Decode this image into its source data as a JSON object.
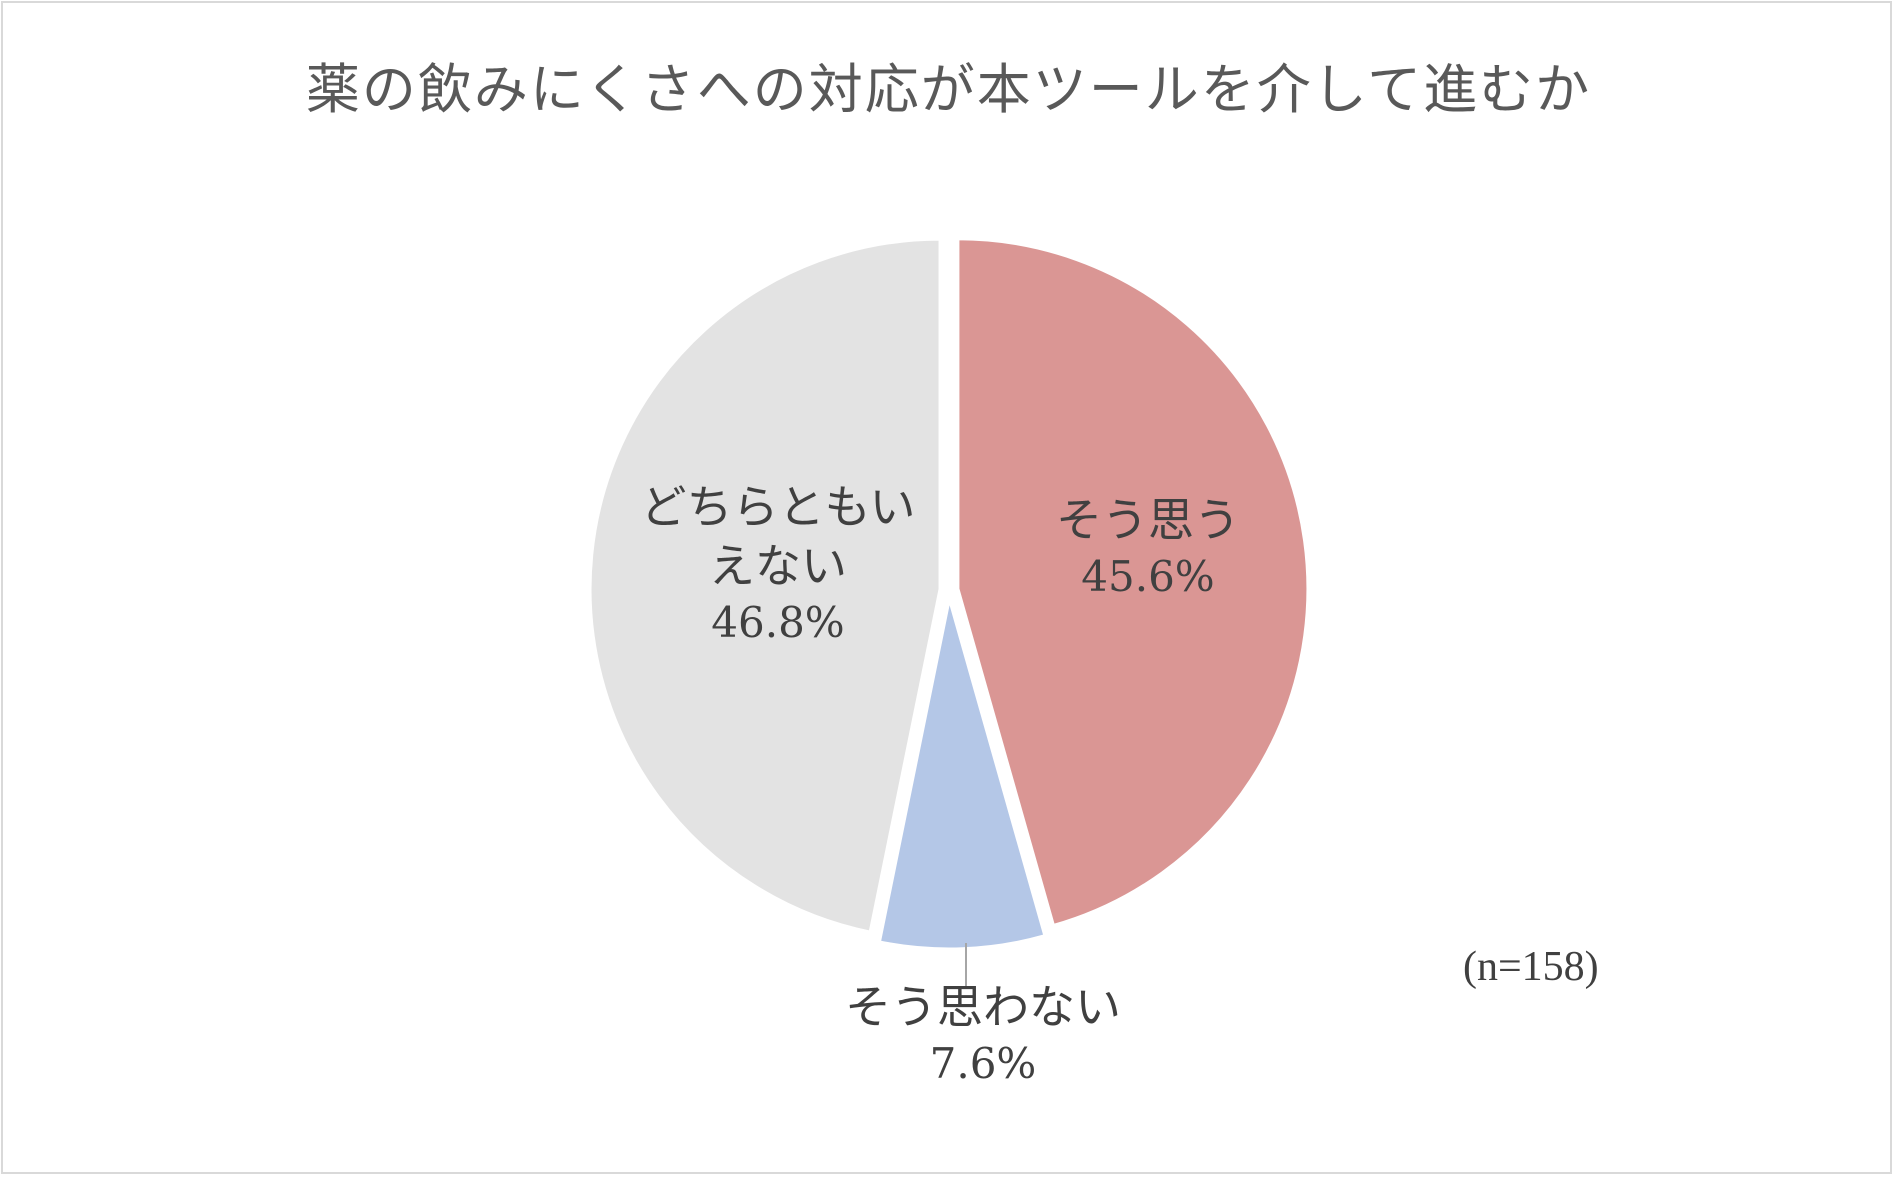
{
  "chart_data": {
    "type": "pie",
    "title": "薬の飲みにくさへの対応が本ツールを介して進むか",
    "start_angle_deg": 0,
    "direction": "clockwise",
    "slices": [
      {
        "label": "そう思う",
        "value": 45.6,
        "value_label": "45.6%",
        "color": "#da9694"
      },
      {
        "label": "そう思わない",
        "value": 7.6,
        "value_label": "7.6%",
        "color": "#b4c7e7"
      },
      {
        "label": "どちらともいえない",
        "value": 46.8,
        "value_label": "46.8%",
        "color": "#e3e3e3"
      }
    ],
    "annotation": "(n=158)",
    "legend": "none",
    "separator_color": "#ffffff"
  }
}
